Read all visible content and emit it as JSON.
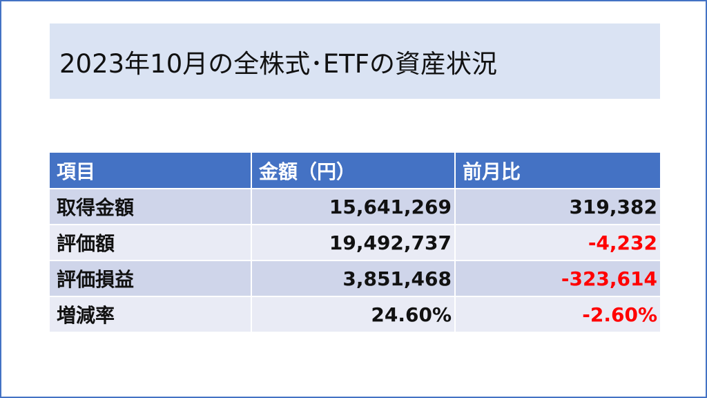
{
  "title": "2023年10月の全株式･ETFの資産状況",
  "table": {
    "headers": [
      "項目",
      "金額（円）",
      "前月比"
    ],
    "rows": [
      {
        "label": "取得金額",
        "amount": "15,641,269",
        "change": "319,382"
      },
      {
        "label": "評価額",
        "amount": "19,492,737",
        "change": "-4,232"
      },
      {
        "label": "評価損益",
        "amount": "3,851,468",
        "change": "-323,614"
      },
      {
        "label": "増減率",
        "amount": "24.60%",
        "change": "-2.60%"
      }
    ]
  },
  "colors": {
    "header_bg": "#4472c4",
    "row_odd_bg": "#cfd5ea",
    "row_even_bg": "#e9ebf5",
    "title_bg": "#dae3f3",
    "negative_text": "#ff0000"
  }
}
